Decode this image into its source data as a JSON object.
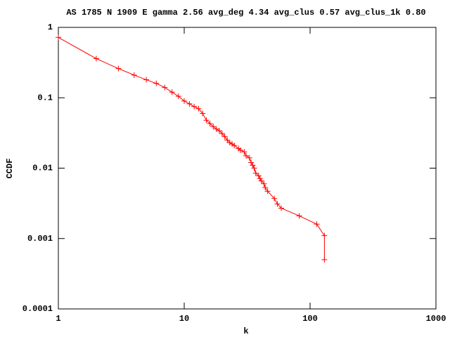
{
  "chart_data": {
    "type": "line",
    "title": "AS 1785 N 1909 E gamma 2.56 avg_deg 4.34 avg_clus 0.57 avg_clus_1k 0.80",
    "x_label": "k",
    "y_label": "CCDF",
    "x": [
      1,
      2,
      3,
      4,
      5,
      6,
      7,
      8,
      9,
      10,
      11,
      12,
      13,
      14,
      15,
      16,
      17,
      18,
      19,
      20,
      21,
      22,
      23,
      24,
      25,
      27,
      28,
      30,
      31,
      33,
      34,
      35,
      36,
      37,
      39,
      40,
      41,
      43,
      44,
      46,
      52,
      55,
      59,
      82,
      113,
      130,
      130
    ],
    "values": [
      0.72,
      0.36,
      0.26,
      0.21,
      0.18,
      0.16,
      0.14,
      0.12,
      0.105,
      0.09,
      0.082,
      0.075,
      0.07,
      0.06,
      0.048,
      0.043,
      0.039,
      0.036,
      0.034,
      0.031,
      0.028,
      0.025,
      0.023,
      0.022,
      0.021,
      0.019,
      0.018,
      0.017,
      0.015,
      0.014,
      0.012,
      0.011,
      0.01,
      0.0085,
      0.0078,
      0.0071,
      0.0066,
      0.006,
      0.0053,
      0.0047,
      0.0037,
      0.0031,
      0.0027,
      0.0021,
      0.0016,
      0.0011,
      0.0005
    ],
    "color": "#ff0000",
    "xlim": [
      1,
      1000
    ],
    "ylim": [
      0.0001,
      1
    ],
    "xticks": [
      1,
      10,
      100,
      1000
    ],
    "yticks": [
      0.0001,
      0.001,
      0.01,
      0.1,
      1
    ],
    "xscale": "log",
    "yscale": "log"
  }
}
